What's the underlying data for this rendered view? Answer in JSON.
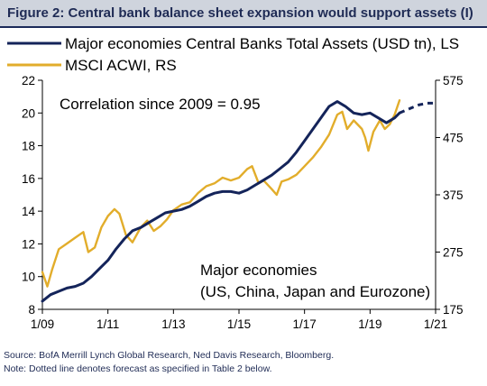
{
  "header": {
    "title": "Figure 2: Central bank balance sheet expansion would support assets (I)"
  },
  "footer": {
    "source": "Source: BofA Merrill Lynch Global Research, Ned Davis Research, Bloomberg.",
    "note": "Note: Dotted line denotes forecast as specified in Table 2 below."
  },
  "colors": {
    "cb_assets": "#14245a",
    "msci": "#e2ad2b"
  },
  "chart_data": {
    "type": "line",
    "legend_position": "top-left",
    "grid": false,
    "annotation": "Correlation since 2009 = 0.95",
    "annotation2_line1": "Major economies",
    "annotation2_line2": "(US, China, Japan and Eurozone)",
    "x_ticks": [
      "1/09",
      "1/11",
      "1/13",
      "1/15",
      "1/17",
      "1/19",
      "1/21"
    ],
    "xlim": [
      2009.0,
      2021.0
    ],
    "y_left": {
      "ticks": [
        "8",
        "10",
        "12",
        "14",
        "16",
        "18",
        "20",
        "22"
      ],
      "lim": [
        8,
        22
      ]
    },
    "y_right": {
      "ticks": [
        "175",
        "275",
        "375",
        "475",
        "575"
      ],
      "lim": [
        175,
        575
      ]
    },
    "series": [
      {
        "name": "Major economies Central Banks Total Assets (USD tn), LS",
        "axis": "left",
        "style": "solid",
        "points": [
          [
            2009.0,
            8.5
          ],
          [
            2009.25,
            8.9
          ],
          [
            2009.5,
            9.1
          ],
          [
            2009.75,
            9.3
          ],
          [
            2010.0,
            9.4
          ],
          [
            2010.25,
            9.6
          ],
          [
            2010.5,
            10.0
          ],
          [
            2010.75,
            10.5
          ],
          [
            2011.0,
            11.0
          ],
          [
            2011.25,
            11.7
          ],
          [
            2011.5,
            12.3
          ],
          [
            2011.75,
            12.8
          ],
          [
            2012.0,
            13.0
          ],
          [
            2012.25,
            13.3
          ],
          [
            2012.5,
            13.6
          ],
          [
            2012.75,
            13.9
          ],
          [
            2013.0,
            14.0
          ],
          [
            2013.25,
            14.1
          ],
          [
            2013.5,
            14.3
          ],
          [
            2013.75,
            14.6
          ],
          [
            2014.0,
            14.9
          ],
          [
            2014.25,
            15.1
          ],
          [
            2014.5,
            15.2
          ],
          [
            2014.75,
            15.2
          ],
          [
            2015.0,
            15.1
          ],
          [
            2015.25,
            15.3
          ],
          [
            2015.5,
            15.6
          ],
          [
            2015.75,
            15.9
          ],
          [
            2016.0,
            16.2
          ],
          [
            2016.25,
            16.6
          ],
          [
            2016.5,
            17.0
          ],
          [
            2016.75,
            17.6
          ],
          [
            2017.0,
            18.3
          ],
          [
            2017.25,
            19.0
          ],
          [
            2017.5,
            19.7
          ],
          [
            2017.75,
            20.4
          ],
          [
            2018.0,
            20.7
          ],
          [
            2018.25,
            20.4
          ],
          [
            2018.5,
            20.0
          ],
          [
            2018.75,
            19.9
          ],
          [
            2019.0,
            20.0
          ],
          [
            2019.25,
            19.7
          ],
          [
            2019.5,
            19.4
          ],
          [
            2019.75,
            19.7
          ],
          [
            2019.9,
            20.0
          ]
        ]
      },
      {
        "name": "Major economies Central Banks Total Assets forecast",
        "axis": "left",
        "style": "dotted",
        "points": [
          [
            2019.9,
            20.0
          ],
          [
            2020.25,
            20.3
          ],
          [
            2020.5,
            20.5
          ],
          [
            2020.75,
            20.6
          ],
          [
            2021.0,
            20.6
          ]
        ]
      },
      {
        "name": "MSCI ACWI, RS",
        "axis": "right",
        "style": "solid",
        "points": [
          [
            2009.0,
            240
          ],
          [
            2009.15,
            215
          ],
          [
            2009.3,
            245
          ],
          [
            2009.5,
            280
          ],
          [
            2009.75,
            290
          ],
          [
            2010.0,
            300
          ],
          [
            2010.25,
            310
          ],
          [
            2010.4,
            275
          ],
          [
            2010.6,
            283
          ],
          [
            2010.8,
            318
          ],
          [
            2011.0,
            338
          ],
          [
            2011.2,
            350
          ],
          [
            2011.35,
            342
          ],
          [
            2011.55,
            305
          ],
          [
            2011.75,
            292
          ],
          [
            2012.0,
            318
          ],
          [
            2012.2,
            330
          ],
          [
            2012.4,
            312
          ],
          [
            2012.6,
            320
          ],
          [
            2012.8,
            332
          ],
          [
            2013.0,
            348
          ],
          [
            2013.25,
            358
          ],
          [
            2013.5,
            362
          ],
          [
            2013.75,
            378
          ],
          [
            2014.0,
            390
          ],
          [
            2014.25,
            395
          ],
          [
            2014.5,
            405
          ],
          [
            2014.75,
            400
          ],
          [
            2015.0,
            405
          ],
          [
            2015.25,
            420
          ],
          [
            2015.4,
            425
          ],
          [
            2015.6,
            395
          ],
          [
            2015.75,
            400
          ],
          [
            2016.0,
            385
          ],
          [
            2016.15,
            375
          ],
          [
            2016.3,
            398
          ],
          [
            2016.5,
            402
          ],
          [
            2016.75,
            410
          ],
          [
            2017.0,
            425
          ],
          [
            2017.25,
            440
          ],
          [
            2017.5,
            458
          ],
          [
            2017.75,
            480
          ],
          [
            2018.0,
            515
          ],
          [
            2018.15,
            520
          ],
          [
            2018.3,
            490
          ],
          [
            2018.5,
            505
          ],
          [
            2018.75,
            490
          ],
          [
            2018.85,
            475
          ],
          [
            2018.95,
            452
          ],
          [
            2019.1,
            485
          ],
          [
            2019.3,
            505
          ],
          [
            2019.45,
            490
          ],
          [
            2019.6,
            498
          ],
          [
            2019.75,
            515
          ],
          [
            2019.9,
            540
          ]
        ]
      }
    ]
  }
}
